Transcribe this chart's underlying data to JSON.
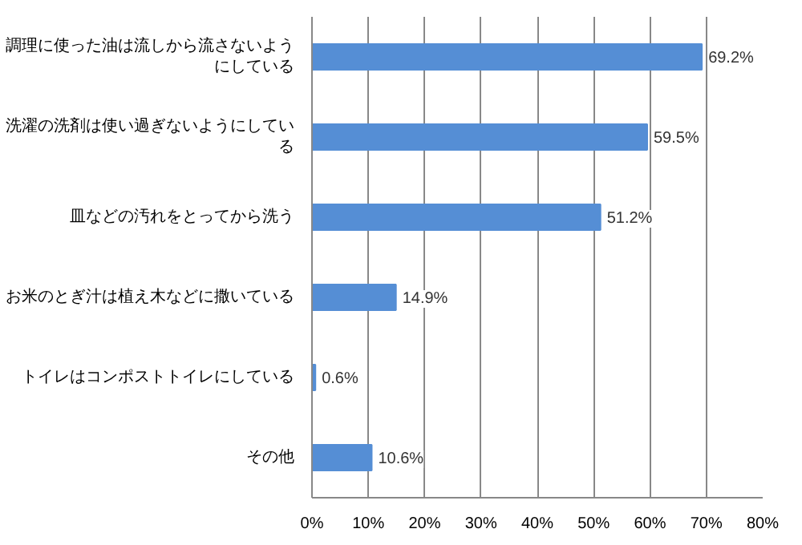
{
  "chart_data": {
    "type": "bar",
    "orientation": "horizontal",
    "categories": [
      "調理に使った油は流しから流さないようにしている",
      "洗濯の洗剤は使い過ぎないようにしている",
      "皿などの汚れをとってから洗う",
      "お米のとぎ汁は植え木などに撒いている",
      "トイレはコンポストトイレにしている",
      "その他"
    ],
    "values": [
      69.2,
      59.5,
      51.2,
      14.9,
      0.6,
      10.6
    ],
    "value_labels": [
      "69.2%",
      "59.5%",
      "51.2%",
      "14.9%",
      "0.6%",
      "10.6%"
    ],
    "color": "#558ed5",
    "xlim": [
      0,
      80
    ],
    "xticks": [
      {
        "value": 0,
        "label": "0%"
      },
      {
        "value": 10,
        "label": "10%"
      },
      {
        "value": 20,
        "label": "20%"
      },
      {
        "value": 30,
        "label": "30%"
      },
      {
        "value": 40,
        "label": "40%"
      },
      {
        "value": 50,
        "label": "50%"
      },
      {
        "value": 60,
        "label": "60%"
      },
      {
        "value": 70,
        "label": "70%"
      },
      {
        "value": 80,
        "label": "80%"
      }
    ],
    "grid": "x"
  }
}
